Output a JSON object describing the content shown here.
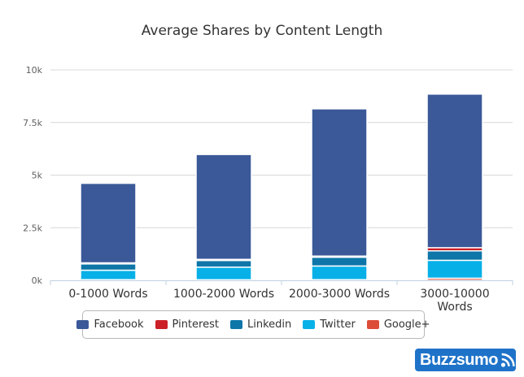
{
  "colors": {
    "Facebook": "#3b5998",
    "Pinterest": "#cb2027",
    "Linkedin": "#0e76a8",
    "Twitter": "#08b0e8",
    "Google+": "#dd4b39",
    "grid": "#d8d8d8"
  },
  "logo": {
    "text": "Buzzsumo",
    "icon": "rss-feed-icon"
  },
  "chart_data": {
    "type": "bar",
    "stacked": true,
    "title": "Average Shares by Content Length",
    "categories": [
      [
        "0-1000 Words"
      ],
      [
        "1000-2000 Words"
      ],
      [
        "2000-3000 Words"
      ],
      [
        "3000-10000",
        "Words"
      ]
    ],
    "ylim": [
      0,
      10000
    ],
    "yticks": [
      {
        "value": 0,
        "label": "0k"
      },
      {
        "value": 2500,
        "label": "2.5k"
      },
      {
        "value": 5000,
        "label": "5k"
      },
      {
        "value": 7500,
        "label": "7.5k"
      },
      {
        "value": 10000,
        "label": "10k"
      }
    ],
    "grid": true,
    "legend": "bottom",
    "series": [
      {
        "name": "Google+",
        "values": [
          30,
          25,
          30,
          100
        ]
      },
      {
        "name": "Twitter",
        "values": [
          450,
          600,
          650,
          850
        ]
      },
      {
        "name": "Linkedin",
        "values": [
          300,
          320,
          420,
          450
        ]
      },
      {
        "name": "Pinterest",
        "values": [
          50,
          50,
          50,
          150
        ]
      },
      {
        "name": "Facebook",
        "values": [
          3780,
          4985,
          7000,
          7300
        ]
      }
    ],
    "legend_order": [
      "Facebook",
      "Pinterest",
      "Linkedin",
      "Twitter",
      "Google+"
    ]
  }
}
